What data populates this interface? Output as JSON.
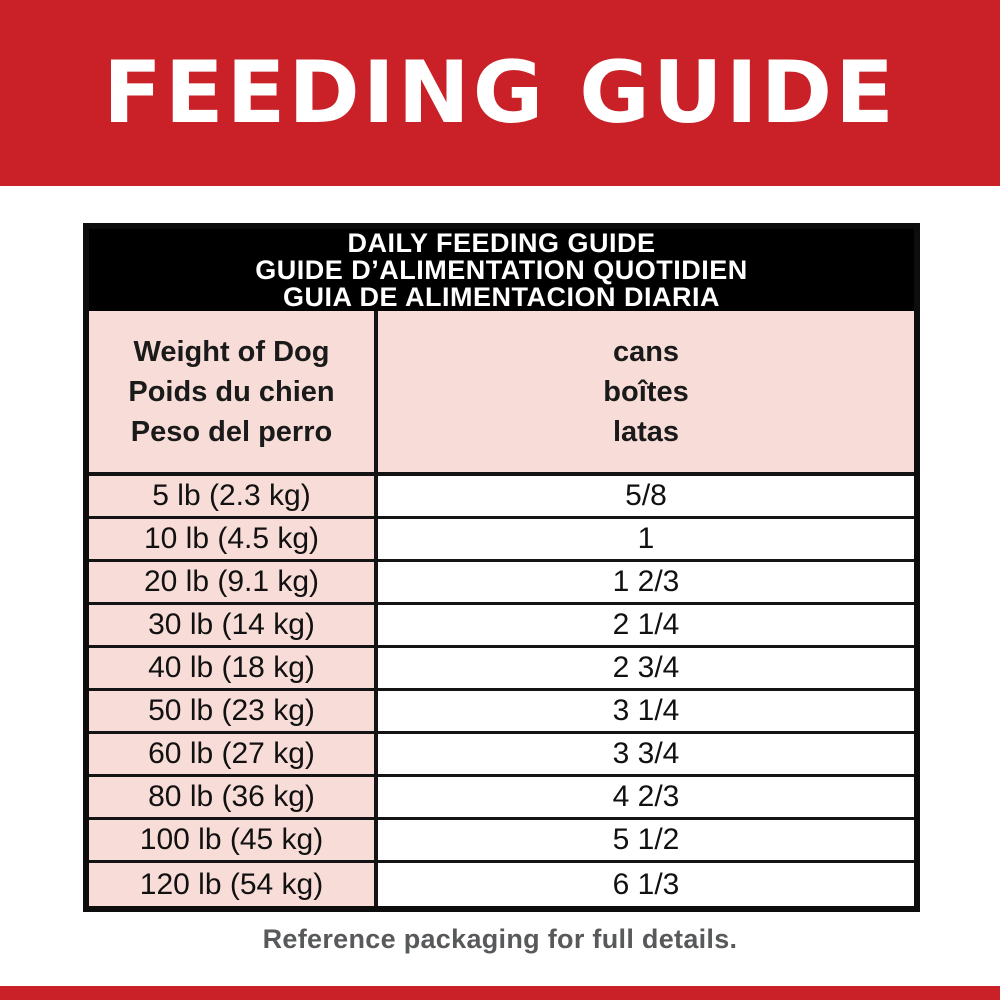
{
  "banner": {
    "title": "FEEDING GUIDE"
  },
  "table": {
    "title_lines": [
      "DAILY FEEDING GUIDE",
      "GUIDE D’ALIMENTATION QUOTIDIEN",
      "GUIA DE ALIMENTACION DIARIA"
    ],
    "weight_header_lines": [
      "Weight of Dog",
      "Poids du chien",
      "Peso del perro"
    ],
    "cans_header_lines": [
      "cans",
      "boîtes",
      "latas"
    ],
    "rows": [
      {
        "weight": "5 lb (2.3 kg)",
        "cans": "5/8"
      },
      {
        "weight": "10 lb (4.5 kg)",
        "cans": "1"
      },
      {
        "weight": "20 lb (9.1 kg)",
        "cans": "1 2/3"
      },
      {
        "weight": "30 lb (14 kg)",
        "cans": "2 1/4"
      },
      {
        "weight": "40 lb (18 kg)",
        "cans": "2 3/4"
      },
      {
        "weight": "50 lb (23 kg)",
        "cans": "3 1/4"
      },
      {
        "weight": "60 lb (27 kg)",
        "cans": "3 3/4"
      },
      {
        "weight": "80 lb (36 kg)",
        "cans": "4 2/3"
      },
      {
        "weight": "100 lb (45 kg)",
        "cans": "5 1/2"
      },
      {
        "weight": "120 lb (54 kg)",
        "cans": "6 1/3"
      }
    ]
  },
  "footer": {
    "note": "Reference packaging for full details."
  },
  "colors": {
    "red": "#C92127",
    "pink": "#F8DCD7",
    "band_black": "#000000",
    "border_black": "#141414",
    "note_gray": "#58595B"
  }
}
